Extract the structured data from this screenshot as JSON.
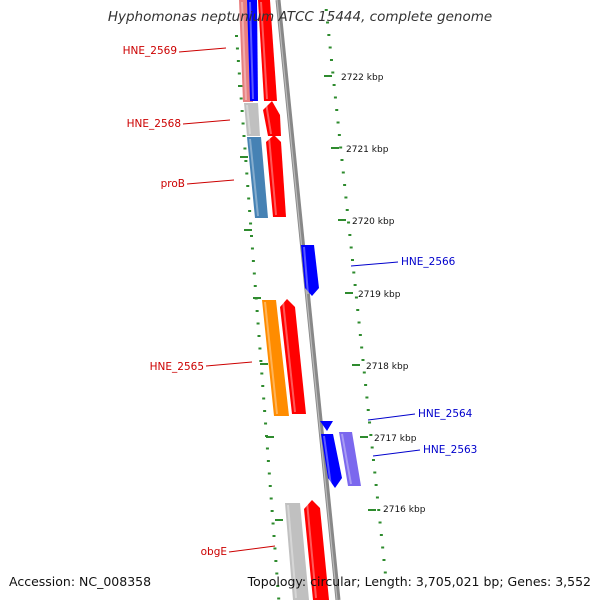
{
  "title": "Hyphomonas neptunium ATCC 15444, complete genome",
  "accession_text": "Accession: NC_008358",
  "summary_text": "Topology: circular; Length: 3,705,021 bp; Genes: 3,552",
  "colors": {
    "tick": "#2e8b2e",
    "forward_label": "#cc0000",
    "reverse_label": "#0000cc",
    "backbone": "#888888",
    "red": "#ff0000",
    "blue": "#0000ff",
    "orange": "#ff8c00",
    "steelblue": "#4682b4",
    "gray": "#c0c0c0",
    "slate": "#7b68ee",
    "salmon": "#e88080"
  },
  "kbp_labels": [
    "2722 kbp",
    "2721 kbp",
    "2720 kbp",
    "2719 kbp",
    "2718 kbp",
    "2717 kbp",
    "2716 kbp"
  ],
  "gene_labels": [
    {
      "text": "HNE_2569",
      "strand": "forward"
    },
    {
      "text": "HNE_2568",
      "strand": "forward"
    },
    {
      "text": "proB",
      "strand": "forward"
    },
    {
      "text": "HNE_2566",
      "strand": "reverse"
    },
    {
      "text": "HNE_2565",
      "strand": "forward"
    },
    {
      "text": "HNE_2564",
      "strand": "reverse"
    },
    {
      "text": "HNE_2563",
      "strand": "reverse"
    },
    {
      "text": "obgE",
      "strand": "forward"
    }
  ]
}
